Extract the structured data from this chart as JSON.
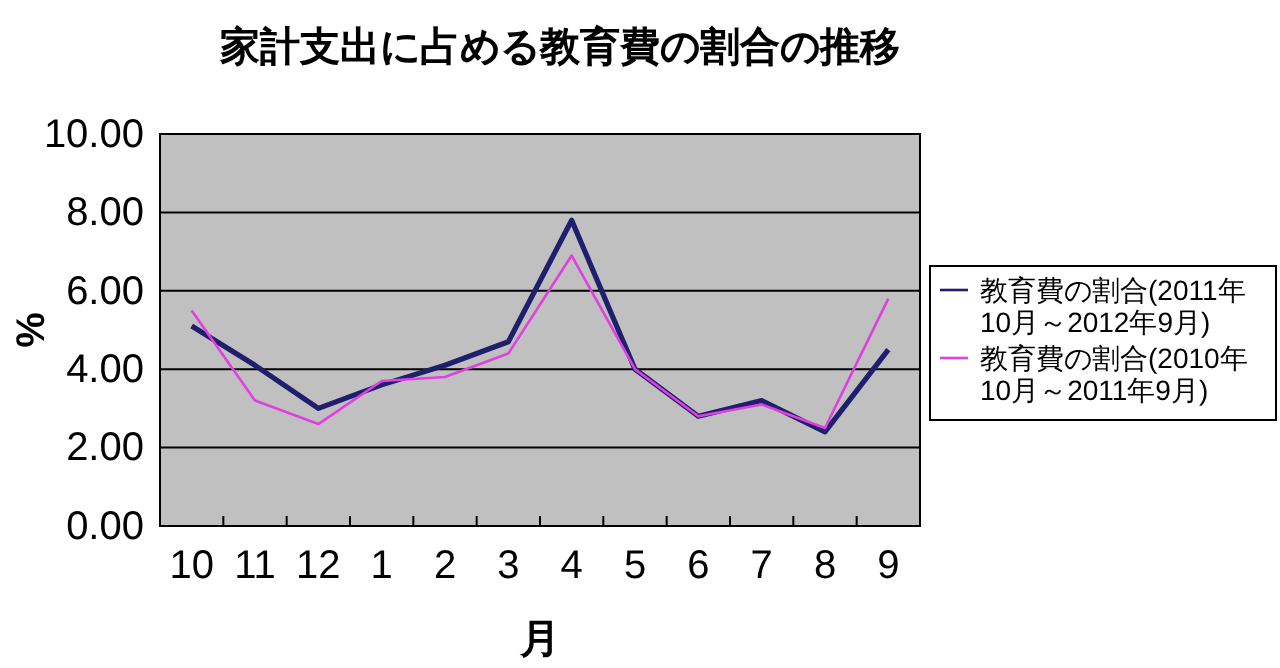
{
  "chart_data": {
    "type": "line",
    "title": "家計支出に占める教育費の割合の推移",
    "xlabel": "月",
    "ylabel": "%",
    "categories": [
      "10",
      "11",
      "12",
      "1",
      "2",
      "3",
      "4",
      "5",
      "6",
      "7",
      "8",
      "9"
    ],
    "series": [
      {
        "name": "教育費の割合(2011年10月～2012年9月)",
        "color": "#1f1f6e",
        "values": [
          5.1,
          4.1,
          3.0,
          3.6,
          4.1,
          4.7,
          7.8,
          4.0,
          2.8,
          3.2,
          2.4,
          4.5
        ]
      },
      {
        "name": "教育費の割合(2010年10月～2011年9月)",
        "color": "#e040e0",
        "values": [
          5.5,
          3.2,
          2.6,
          3.7,
          3.8,
          4.4,
          6.9,
          4.0,
          2.8,
          3.1,
          2.5,
          5.8
        ]
      }
    ],
    "ylim": [
      0,
      10
    ],
    "yticks": [
      {
        "value": 0,
        "label": "0.00"
      },
      {
        "value": 2,
        "label": "2.00"
      },
      {
        "value": 4,
        "label": "4.00"
      },
      {
        "value": 6,
        "label": "6.00"
      },
      {
        "value": 8,
        "label": "8.00"
      },
      {
        "value": 10,
        "label": "10.00"
      }
    ],
    "grid": "y",
    "legend": "right",
    "marker": "none",
    "line_style": "solid"
  }
}
